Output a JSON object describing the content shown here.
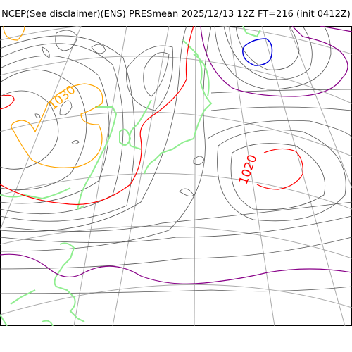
{
  "title": "NCEP(See disclaimer)(ENS) PRESmean 2025/12/13 12Z FT=216 (init 0412Z)",
  "isobar_labels": {
    "high": "1030",
    "east": "1020"
  },
  "colors": {
    "coast": "#90ee90",
    "grid": "#aaaaaa",
    "isobar": "#444444",
    "isobar_1030": "#ffa500",
    "isobar_1020": "#ff0000",
    "isobar_1010": "#880088",
    "isobar_low": "#0000dd"
  }
}
